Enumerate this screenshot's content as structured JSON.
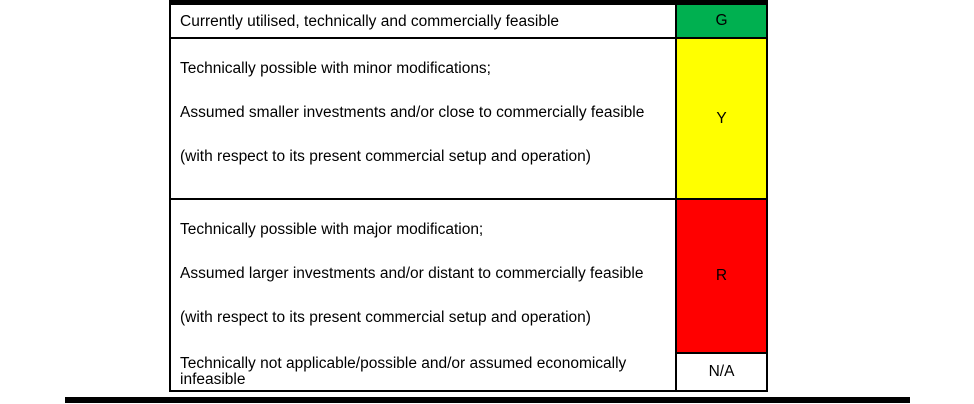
{
  "table": {
    "rows": [
      {
        "code": "G",
        "color": "#00B050",
        "meaning": "green",
        "paragraphs": [
          "Currently utilised, technically and commercially feasible"
        ]
      },
      {
        "code": "Y",
        "color": "#FFFF00",
        "meaning": "yellow",
        "paragraphs": [
          "Technically possible with minor modifications;",
          "Assumed smaller investments and/or close to commercially feasible",
          "(with respect to its present commercial setup and operation)"
        ]
      },
      {
        "code": "R",
        "color": "#FF0000",
        "meaning": "red",
        "paragraphs": [
          "Technically possible with major modification;",
          "Assumed larger investments and/or distant to commercially feasible",
          "(with respect to its present commercial setup and operation)"
        ]
      },
      {
        "code": "N/A",
        "color": "#FFFFFF",
        "meaning": "not-applicable",
        "paragraphs": [
          "Technically not applicable/possible and/or assumed economically infeasible"
        ]
      }
    ],
    "border_color": "#000000"
  }
}
